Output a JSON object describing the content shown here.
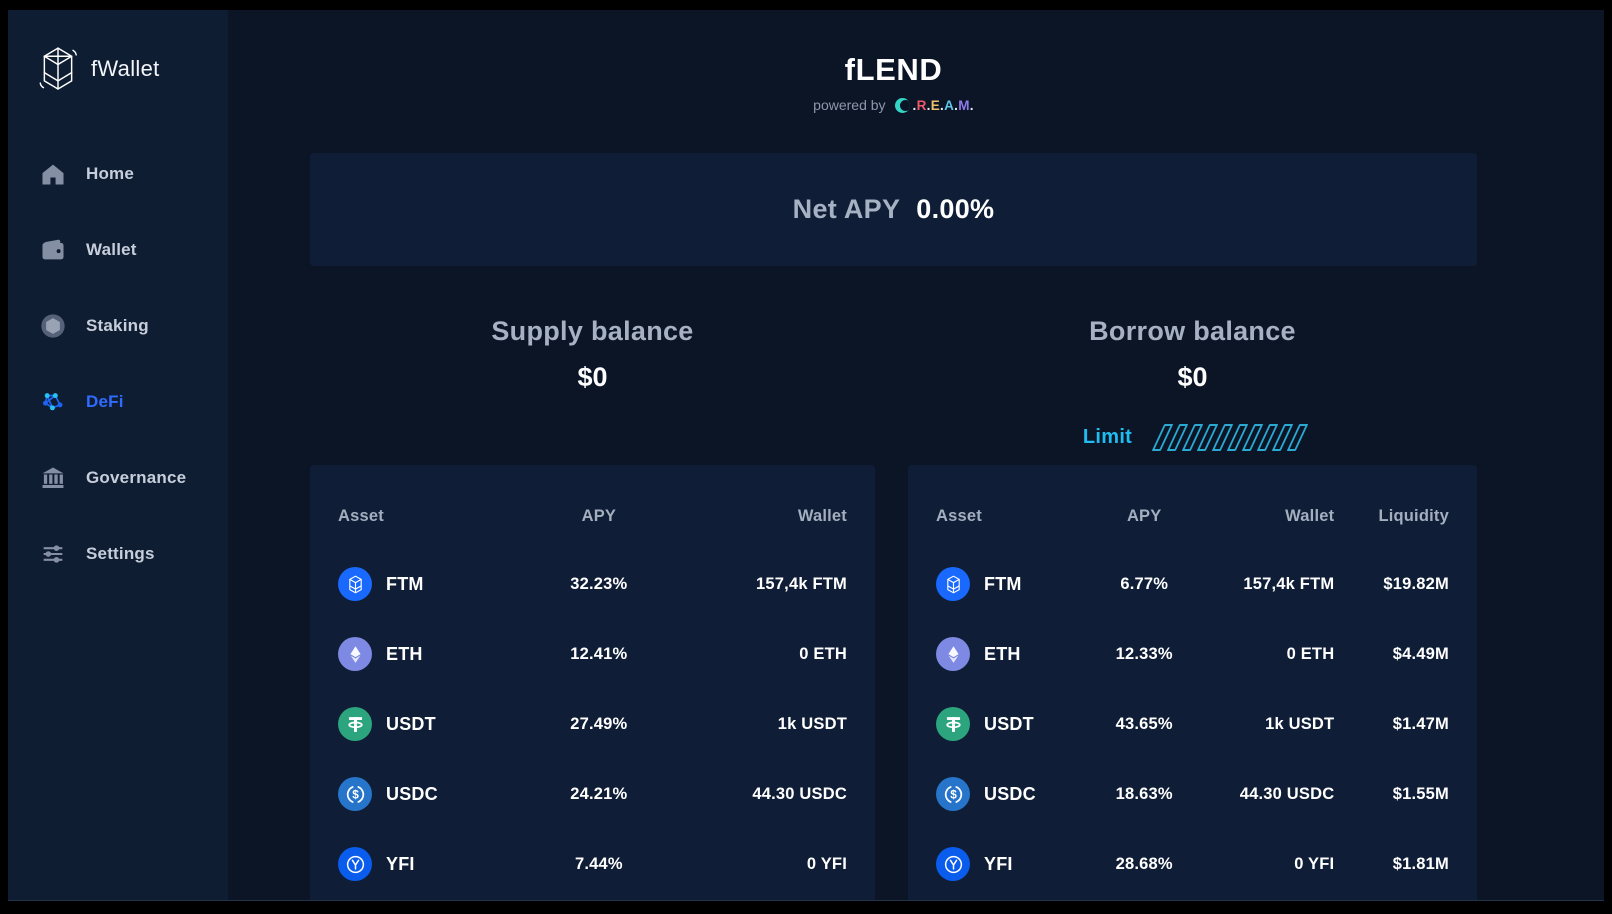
{
  "sidebar": {
    "brand": "fWallet",
    "active_color": "#2f6bff",
    "items": [
      {
        "label": "Home",
        "icon": "home",
        "active": false
      },
      {
        "label": "Wallet",
        "icon": "wallet",
        "active": false
      },
      {
        "label": "Staking",
        "icon": "staking",
        "active": false
      },
      {
        "label": "DeFi",
        "icon": "defi",
        "active": true
      },
      {
        "label": "Governance",
        "icon": "governance",
        "active": false
      },
      {
        "label": "Settings",
        "icon": "settings",
        "active": false
      }
    ]
  },
  "header": {
    "title": "fLEND",
    "powered_by": "powered by",
    "cream": {
      "name": "C.R.E.A.M.",
      "icon_color": "#35d5c6",
      "dot_color": "#e8ecf2",
      "letters": [
        {
          "ch": "R",
          "color": "#f0586c"
        },
        {
          "ch": "E",
          "color": "#edc36b"
        },
        {
          "ch": "A",
          "color": "#5fc8e6"
        },
        {
          "ch": "M",
          "color": "#8f7bea"
        }
      ]
    }
  },
  "net_apy": {
    "label": "Net APY",
    "value": "0.00%"
  },
  "supply": {
    "title": "Supply balance",
    "balance": "$0",
    "columns": [
      "Asset",
      "APY",
      "Wallet"
    ],
    "rows": [
      {
        "symbol": "FTM",
        "icon": "ftm",
        "icon_color": "#1969ff",
        "apy": "32.23%",
        "wallet": "157,4k FTM"
      },
      {
        "symbol": "ETH",
        "icon": "eth",
        "icon_color": "#7d89e3",
        "apy": "12.41%",
        "wallet": "0 ETH"
      },
      {
        "symbol": "USDT",
        "icon": "usdt",
        "icon_color": "#2ca57e",
        "apy": "27.49%",
        "wallet": "1k USDT"
      },
      {
        "symbol": "USDC",
        "icon": "usdc",
        "icon_color": "#2775ca",
        "apy": "24.21%",
        "wallet": "44.30 USDC"
      },
      {
        "symbol": "YFI",
        "icon": "yfi",
        "icon_color": "#0a5ced",
        "apy": "7.44%",
        "wallet": "0 YFI"
      }
    ]
  },
  "borrow": {
    "title": "Borrow balance",
    "balance": "$0",
    "limit_label": "Limit",
    "limit_hatch_count": 10,
    "limit_color": "#20bbf0",
    "columns": [
      "Asset",
      "APY",
      "Wallet",
      "Liquidity"
    ],
    "rows": [
      {
        "symbol": "FTM",
        "icon": "ftm",
        "icon_color": "#1969ff",
        "apy": "6.77%",
        "wallet": "157,4k FTM",
        "liquidity": "$19.82M"
      },
      {
        "symbol": "ETH",
        "icon": "eth",
        "icon_color": "#7d89e3",
        "apy": "12.33%",
        "wallet": "0 ETH",
        "liquidity": "$4.49M"
      },
      {
        "symbol": "USDT",
        "icon": "usdt",
        "icon_color": "#2ca57e",
        "apy": "43.65%",
        "wallet": "1k USDT",
        "liquidity": "$1.47M"
      },
      {
        "symbol": "USDC",
        "icon": "usdc",
        "icon_color": "#2775ca",
        "apy": "18.63%",
        "wallet": "44.30 USDC",
        "liquidity": "$1.55M"
      },
      {
        "symbol": "YFI",
        "icon": "yfi",
        "icon_color": "#0a5ced",
        "apy": "28.68%",
        "wallet": "0 YFI",
        "liquidity": "$1.81M"
      }
    ]
  },
  "colors": {
    "frame": "#000000",
    "main_bg": "#0b1526",
    "sidebar_bg": "#0f1d32",
    "card_bg": "#0f1e36",
    "heading_grey": "#a6b1c3",
    "value_white": "#ffffff",
    "limit_cyan": "#20bbf0"
  }
}
